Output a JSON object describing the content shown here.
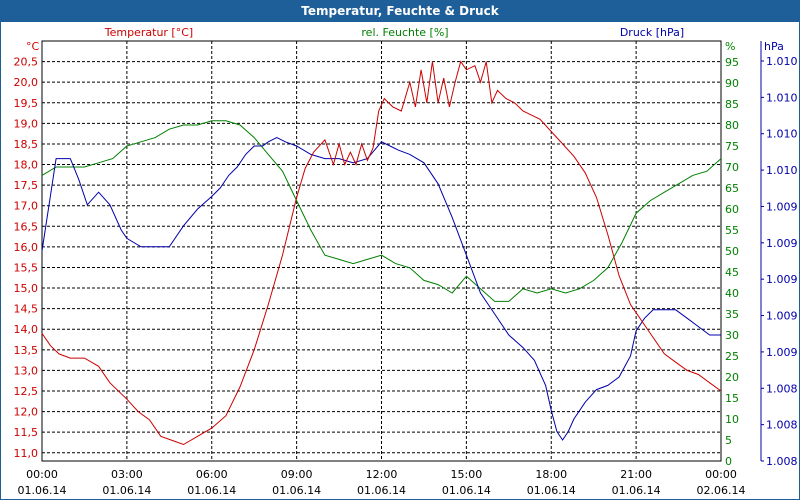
{
  "window": {
    "title": "Temperatur, Feuchte & Druck"
  },
  "colors": {
    "temperature": "#cc0000",
    "humidity": "#008000",
    "pressure": "#0000aa",
    "titlebar": "#1e5f9a",
    "grid": "#000000"
  },
  "chart_data": {
    "type": "line",
    "title": "Temperatur, Feuchte & Druck",
    "grid": true,
    "x_ticks": [
      {
        "time": "00:00",
        "date": "01.06.14"
      },
      {
        "time": "03:00",
        "date": "01.06.14"
      },
      {
        "time": "06:00",
        "date": "01.06.14"
      },
      {
        "time": "09:00",
        "date": "01.06.14"
      },
      {
        "time": "12:00",
        "date": "01.06.14"
      },
      {
        "time": "15:00",
        "date": "01.06.14"
      },
      {
        "time": "18:00",
        "date": "01.06.14"
      },
      {
        "time": "21:00",
        "date": "01.06.14"
      },
      {
        "time": "00:00",
        "date": "02.06.14"
      }
    ],
    "xlim_hours": [
      0,
      24
    ],
    "axes": {
      "temperature": {
        "label": "Temperatur [°C]",
        "unit": "°C",
        "ylim": [
          10.8,
          21.0
        ],
        "ticks": [
          "11,0",
          "11,5",
          "12,0",
          "12,5",
          "13,0",
          "13,5",
          "14,0",
          "14,5",
          "15,0",
          "15,5",
          "16,0",
          "16,5",
          "17,0",
          "17,5",
          "18,0",
          "18,5",
          "19,0",
          "19,5",
          "20,0",
          "20,5"
        ]
      },
      "humidity": {
        "label": "rel. Feuchte [%]",
        "unit": "%",
        "ylim": [
          0,
          100
        ],
        "ticks": [
          "0",
          "5",
          "10",
          "15",
          "20",
          "25",
          "30",
          "35",
          "40",
          "45",
          "50",
          "55",
          "60",
          "65",
          "70",
          "75",
          "80",
          "85",
          "90",
          "95"
        ]
      },
      "pressure": {
        "label": "Druck [hPa]",
        "unit": "hPa",
        "ticks": [
          "1.008",
          "1.008",
          "1.008",
          "1.009",
          "1.009",
          "1.009",
          "1.009",
          "1.009",
          "1.010",
          "1.010",
          "1.010",
          "1.010"
        ]
      }
    },
    "series": [
      {
        "name": "Temperatur [°C]",
        "axis": "temperature",
        "x": [
          0,
          0.3,
          0.6,
          1.0,
          1.5,
          2.0,
          2.4,
          3.0,
          3.4,
          3.8,
          4.2,
          4.6,
          5.0,
          5.5,
          6.0,
          6.5,
          7.0,
          7.5,
          8.0,
          8.5,
          9.0,
          9.3,
          9.6,
          10.0,
          10.3,
          10.5,
          10.7,
          10.9,
          11.1,
          11.3,
          11.5,
          11.7,
          11.9,
          12.1,
          12.4,
          12.7,
          13.0,
          13.2,
          13.4,
          13.6,
          13.8,
          14.0,
          14.2,
          14.4,
          14.6,
          14.8,
          15.0,
          15.3,
          15.5,
          15.7,
          15.9,
          16.1,
          16.4,
          16.7,
          17.0,
          17.3,
          17.6,
          18.0,
          18.4,
          18.8,
          19.2,
          19.6,
          20.0,
          20.4,
          20.8,
          21.2,
          21.6,
          22.0,
          22.4,
          22.8,
          23.2,
          23.6,
          24.0
        ],
        "values": [
          13.9,
          13.6,
          13.4,
          13.3,
          13.3,
          13.1,
          12.7,
          12.3,
          12.0,
          11.8,
          11.4,
          11.3,
          11.2,
          11.4,
          11.6,
          11.9,
          12.6,
          13.5,
          14.6,
          15.8,
          17.2,
          17.9,
          18.3,
          18.6,
          18.0,
          18.5,
          18.0,
          18.3,
          18.0,
          18.5,
          18.1,
          18.4,
          19.3,
          19.6,
          19.4,
          19.3,
          20.0,
          19.4,
          20.3,
          19.5,
          20.5,
          19.5,
          20.1,
          19.4,
          20.0,
          20.5,
          20.3,
          20.4,
          20.0,
          20.5,
          19.5,
          19.8,
          19.6,
          19.5,
          19.3,
          19.2,
          19.1,
          18.8,
          18.5,
          18.2,
          17.8,
          17.2,
          16.3,
          15.3,
          14.6,
          14.2,
          13.8,
          13.4,
          13.2,
          13.0,
          12.9,
          12.7,
          12.5
        ]
      },
      {
        "name": "rel. Feuchte [%]",
        "axis": "humidity",
        "x": [
          0,
          0.5,
          1.0,
          1.5,
          2.0,
          2.5,
          3.0,
          3.5,
          4.0,
          4.5,
          5.0,
          5.5,
          6.0,
          6.5,
          7.0,
          7.5,
          8.0,
          8.5,
          9.0,
          9.5,
          10.0,
          10.5,
          11.0,
          11.5,
          12.0,
          12.5,
          13.0,
          13.5,
          14.0,
          14.5,
          15.0,
          15.5,
          16.0,
          16.5,
          17.0,
          17.5,
          18.0,
          18.5,
          19.0,
          19.5,
          20.0,
          20.5,
          21.0,
          21.5,
          22.0,
          22.5,
          23.0,
          23.5,
          24.0
        ],
        "values": [
          68,
          70,
          70,
          70,
          71,
          72,
          75,
          76,
          77,
          79,
          80,
          80,
          81,
          81,
          80,
          77,
          73,
          69,
          62,
          55,
          49,
          48,
          47,
          48,
          49,
          47,
          46,
          43,
          42,
          40,
          44,
          41,
          38,
          38,
          41,
          40,
          41,
          40,
          41,
          43,
          46,
          52,
          59,
          62,
          64,
          66,
          68,
          69,
          72
        ]
      },
      {
        "name": "Druck [hPa]",
        "axis": "pressure",
        "x": [
          0,
          0.5,
          1.0,
          1.3,
          1.6,
          2.0,
          2.4,
          2.8,
          3.0,
          3.5,
          4.0,
          4.5,
          5.0,
          5.5,
          6.0,
          6.3,
          6.6,
          6.9,
          7.2,
          7.5,
          7.8,
          8.0,
          8.3,
          8.6,
          9.0,
          9.5,
          10.0,
          10.5,
          11.0,
          11.5,
          12.0,
          12.3,
          12.6,
          13.0,
          13.5,
          14.0,
          14.5,
          15.0,
          15.5,
          16.0,
          16.5,
          17.0,
          17.4,
          17.8,
          18.0,
          18.2,
          18.4,
          18.6,
          18.8,
          19.2,
          19.6,
          20.0,
          20.4,
          20.8,
          21.0,
          21.3,
          21.6,
          22.0,
          22.4,
          22.8,
          23.2,
          23.6,
          24.0
        ],
        "levels": [
          0.5,
          0.72,
          0.72,
          0.67,
          0.61,
          0.64,
          0.61,
          0.55,
          0.53,
          0.51,
          0.51,
          0.51,
          0.56,
          0.6,
          0.63,
          0.65,
          0.68,
          0.7,
          0.73,
          0.75,
          0.75,
          0.76,
          0.77,
          0.76,
          0.75,
          0.73,
          0.72,
          0.72,
          0.71,
          0.72,
          0.76,
          0.75,
          0.74,
          0.73,
          0.71,
          0.66,
          0.58,
          0.49,
          0.4,
          0.35,
          0.3,
          0.27,
          0.24,
          0.18,
          0.12,
          0.07,
          0.05,
          0.07,
          0.1,
          0.14,
          0.17,
          0.18,
          0.2,
          0.25,
          0.31,
          0.34,
          0.36,
          0.36,
          0.36,
          0.34,
          0.32,
          0.3,
          0.3
        ]
      }
    ]
  }
}
